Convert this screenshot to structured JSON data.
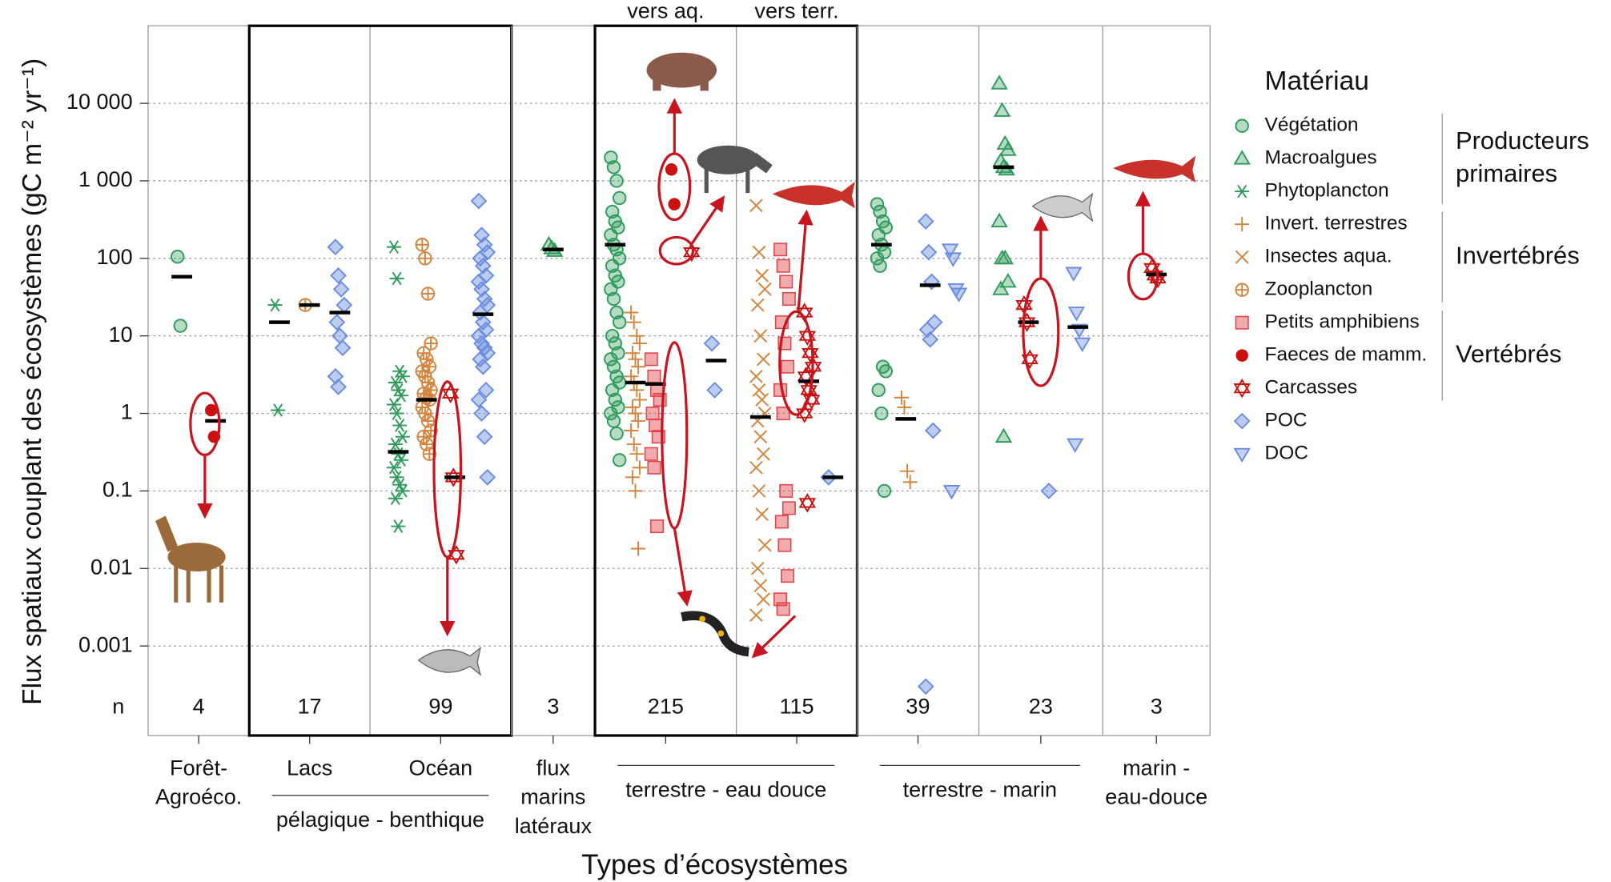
{
  "chart_data": {
    "type": "strip",
    "ylabel": "Flux spatiaux couplant des écosystèmes (gC m⁻² yr⁻¹)",
    "xlabel": "Types d’écosystèmes",
    "log_y": true,
    "grid": true,
    "ylim": [
      7e-05,
      100000
    ],
    "yticks": [
      {
        "value": 10000,
        "label": "10 000"
      },
      {
        "value": 1000,
        "label": "1 000"
      },
      100,
      10,
      1,
      0.1,
      0.01,
      0.001
    ],
    "n_label": "n",
    "legend": {
      "title": "Matériau",
      "groups": [
        {
          "label": [
            "Producteurs",
            "primaires"
          ],
          "series": [
            {
              "name": "Végétation",
              "color": "#2e9b5a",
              "marker": "circle"
            },
            {
              "name": "Macroalgues",
              "color": "#2e9b5a",
              "marker": "triangle"
            },
            {
              "name": "Phytoplancton",
              "color": "#2e9b5a",
              "marker": "asterisk"
            }
          ]
        },
        {
          "label": [
            "Invertébrés"
          ],
          "series": [
            {
              "name": "Invert. terrestres",
              "color": "#d4843c",
              "marker": "plus"
            },
            {
              "name": "Insectes aqua.",
              "color": "#d4843c",
              "marker": "cross"
            },
            {
              "name": "Zooplancton",
              "color": "#d4843c",
              "marker": "circplus"
            }
          ]
        },
        {
          "label": [
            "Vertébrés"
          ],
          "series": [
            {
              "name": "Petits amphibiens",
              "color": "#e0454a",
              "marker": "square"
            },
            {
              "name": "Faeces de mamm.",
              "color": "#cc1010",
              "marker": "dot"
            },
            {
              "name": "Carcasses",
              "color": "#cc1010",
              "marker": "star"
            }
          ]
        },
        {
          "series": [
            {
              "name": "POC",
              "color": "#6b8de0",
              "marker": "diamond"
            },
            {
              "name": "DOC",
              "color": "#6b8de0",
              "marker": "downtri"
            }
          ]
        }
      ]
    },
    "x_groups": [
      {
        "label": [
          "Forêt-",
          "Agroéco."
        ],
        "columns": [
          {
            "n": 4,
            "values": [
              [
                105,
                13.5
              ],
              [],
              [],
              [],
              [],
              [],
              [],
              [
                1.1,
                0.5
              ],
              [],
              [],
              []
            ],
            "medians": [
              58,
              null,
              null,
              null,
              null,
              null,
              null,
              0.8,
              null,
              null,
              null
            ]
          }
        ]
      },
      {
        "label": [
          "pélagique - benthique"
        ],
        "boxed": true,
        "columns": [
          {
            "label": "Lacs",
            "n": 17,
            "values": [
              [],
              [],
              [
                25,
                1.1
              ],
              [],
              [],
              [
                25
              ],
              [],
              [],
              [],
              [
                140,
                60,
                40,
                25,
                15,
                10,
                7,
                3,
                2.2
              ],
              []
            ],
            "medians": [
              null,
              null,
              15,
              null,
              null,
              25,
              null,
              null,
              null,
              20,
              null
            ]
          },
          {
            "label": "Océan",
            "n": 99,
            "values": [
              [],
              [],
              [
                140,
                55,
                3.5,
                3,
                2.5,
                2,
                1.7,
                1.3,
                1,
                0.7,
                0.5,
                0.4,
                0.3,
                0.25,
                0.2,
                0.15,
                0.12,
                0.1,
                0.08,
                0.035
              ],
              [],
              [],
              [
                150,
                100,
                35,
                8,
                6,
                5,
                4,
                3.5,
                3,
                2.5,
                2,
                1.8,
                1.6,
                1.5,
                1.2,
                1,
                0.8,
                0.6,
                0.5,
                0.4,
                0.3
              ],
              [],
              [],
              [
                1.8,
                0.15,
                0.015
              ],
              [
                550,
                200,
                150,
                120,
                100,
                80,
                60,
                50,
                40,
                30,
                25,
                20,
                15,
                12,
                10,
                8,
                7,
                6,
                5,
                4,
                2,
                1.5,
                1,
                0.5,
                0.15
              ],
              []
            ],
            "medians": [
              null,
              null,
              0.32,
              null,
              null,
              1.5,
              null,
              null,
              0.15,
              19,
              null
            ]
          }
        ]
      },
      {
        "label": [
          "flux",
          "marins",
          "latéraux"
        ],
        "columns": [
          {
            "n": 3,
            "values": [
              [],
              [
                150,
                135,
                125
              ],
              [],
              [],
              [],
              [],
              [],
              [],
              [],
              [],
              []
            ],
            "medians": [
              null,
              130,
              null,
              null,
              null,
              null,
              null,
              null,
              null,
              null,
              null
            ]
          }
        ]
      },
      {
        "label": [
          "terrestre - eau douce"
        ],
        "boxed": true,
        "columns": [
          {
            "top_label": "vers aq.",
            "n": 215,
            "values": [
              [
                2000,
                1500,
                1000,
                600,
                400,
                300,
                250,
                200,
                150,
                130,
                100,
                80,
                60,
                50,
                40,
                30,
                20,
                15,
                10,
                8,
                6,
                5,
                4,
                3,
                2.5,
                2,
                1.5,
                1.2,
                1,
                0.8,
                0.55,
                0.25
              ],
              [],
              [],
              [
                20,
                15,
                10,
                8,
                6,
                5,
                4,
                3,
                2.5,
                2,
                1.5,
                1.2,
                1,
                0.8,
                0.6,
                0.4,
                0.3,
                0.2,
                0.15,
                0.1,
                0.018
              ],
              [],
              [],
              [
                5,
                3,
                2,
                1.5,
                1,
                0.7,
                0.5,
                0.3,
                0.2,
                0.035
              ],
              [
                1400,
                500
              ],
              [
                120
              ],
              [
                8,
                2
              ],
              []
            ],
            "medians": [
              150,
              null,
              null,
              2.5,
              null,
              null,
              2.4,
              null,
              null,
              4.8,
              null
            ]
          },
          {
            "top_label": "vers terr.",
            "n": 115,
            "values": [
              [],
              [],
              [],
              [],
              [
                480,
                120,
                60,
                40,
                25,
                10,
                5,
                3,
                2,
                1.5,
                1,
                0.8,
                0.5,
                0.3,
                0.2,
                0.1,
                0.05,
                0.02,
                0.01,
                0.006,
                0.004,
                0.0025
              ],
              [],
              [
                130,
                80,
                50,
                30,
                15,
                8,
                4,
                2,
                1,
                0.1,
                0.06,
                0.04,
                0.02,
                0.008,
                0.004,
                0.003
              ],
              [],
              [
                20,
                10,
                6,
                4,
                3,
                2,
                1.5,
                1,
                0.07
              ],
              [
                0.15
              ],
              []
            ],
            "medians": [
              null,
              null,
              null,
              null,
              0.9,
              null,
              null,
              null,
              2.6,
              0.15,
              null
            ]
          }
        ]
      },
      {
        "label": [
          "terrestre - marin"
        ],
        "columns": [
          {
            "n": 39,
            "values": [
              [
                500,
                400,
                300,
                250,
                200,
                150,
                120,
                100,
                80,
                4,
                3.5,
                2,
                1,
                0.1
              ],
              [],
              [],
              [
                1.6,
                1.2,
                0.18,
                0.13
              ],
              [],
              [],
              [],
              [],
              [],
              [
                300,
                120,
                50,
                15,
                12,
                9,
                0.6,
                0.0003
              ],
              [
                130,
                100,
                40,
                35,
                0.1
              ]
            ],
            "medians": [
              150,
              null,
              null,
              0.85,
              null,
              null,
              null,
              null,
              null,
              45,
              null
            ]
          },
          {
            "n": 23,
            "values": [
              [],
              [
                18000,
                8000,
                3000,
                2500,
                1800,
                1500,
                1400,
                300,
                100,
                100,
                50,
                40,
                0.5
              ],
              [],
              [],
              [],
              [],
              [],
              [],
              [
                25,
                15,
                5
              ],
              [
                0.1
              ],
              [
                65,
                20,
                12,
                8,
                0.4
              ]
            ],
            "medians": [
              null,
              1500,
              null,
              null,
              null,
              null,
              null,
              null,
              15,
              null,
              13
            ]
          }
        ]
      },
      {
        "label": [
          "marin -",
          "eau-douce"
        ],
        "columns": [
          {
            "n": 3,
            "values": [
              [],
              [],
              [],
              [],
              [],
              [],
              [],
              [],
              [
                75,
                60,
                55
              ],
              [],
              []
            ],
            "medians": [
              null,
              null,
              null,
              null,
              null,
              null,
              null,
              null,
              62,
              null,
              null
            ]
          }
        ]
      }
    ]
  }
}
